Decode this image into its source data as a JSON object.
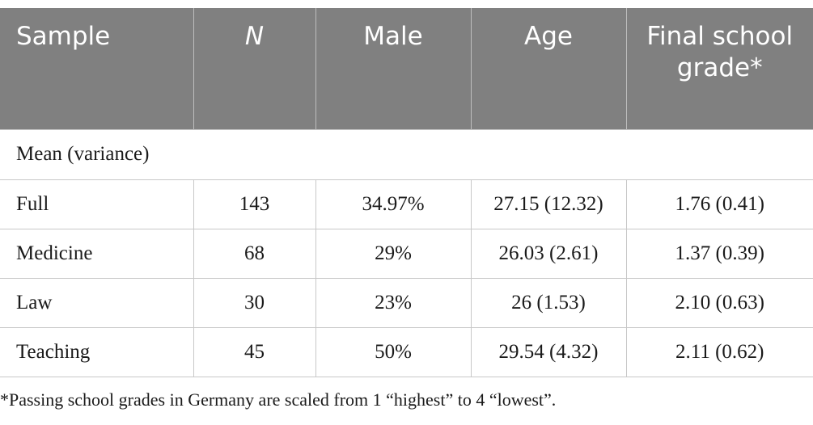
{
  "table": {
    "headers": [
      "Sample",
      "N",
      "Male",
      "Age",
      "Final school grade*"
    ],
    "section_label": "Mean (variance)",
    "rows": [
      [
        "Full",
        "143",
        "34.97%",
        "27.15 (12.32)",
        "1.76 (0.41)"
      ],
      [
        "Medicine",
        "68",
        "29%",
        "26.03 (2.61)",
        "1.37 (0.39)"
      ],
      [
        "Law",
        "30",
        "23%",
        "26 (1.53)",
        "2.10 (0.63)"
      ],
      [
        "Teaching",
        "45",
        "50%",
        "29.54 (4.32)",
        "2.11 (0.62)"
      ]
    ]
  },
  "footnote": "*Passing school grades in Germany are scaled from 1 “highest” to 4 “lowest”.",
  "colors": {
    "header_background": "#808080",
    "header_text": "#ffffff",
    "grid_lines": "#c8c8c8"
  }
}
